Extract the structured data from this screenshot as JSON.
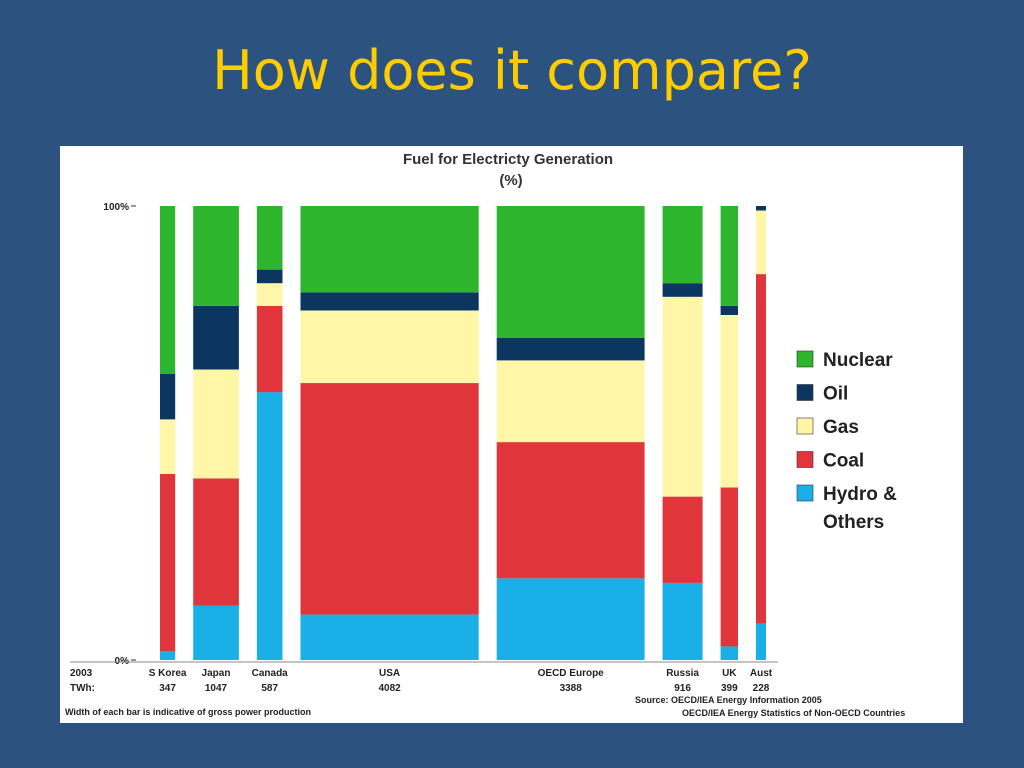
{
  "slide": {
    "title": "How does it compare?"
  },
  "colors": {
    "background": "#2c5380",
    "title": "#ffcc00",
    "nuclear": "#2db52d",
    "oil": "#0b3660",
    "gas": "#fff6a8",
    "coal": "#e0353a",
    "hydro": "#1aafe6"
  },
  "chart_data": {
    "type": "bar",
    "subtype": "variable-width stacked 100% (marimekko)",
    "title": "Fuel for Electricty Generation",
    "subtitle": "(%)",
    "y_ticks": [
      "100%",
      "0%"
    ],
    "ylim": [
      0,
      100
    ],
    "row_labels": {
      "year": "2003",
      "unit": "TWh:"
    },
    "categories": [
      "S Korea",
      "Japan",
      "Canada",
      "USA",
      "OECD Europe",
      "Russia",
      "UK",
      "Aust"
    ],
    "twh": [
      "347",
      "1047",
      "587",
      "4082",
      "3388",
      "916",
      "399",
      "228"
    ],
    "series": [
      {
        "name": "Hydro & Others",
        "key": "hydro",
        "values": [
          2,
          12,
          59,
          10,
          18,
          17,
          3,
          8
        ]
      },
      {
        "name": "Coal",
        "key": "coal",
        "values": [
          39,
          28,
          19,
          51,
          30,
          19,
          35,
          77
        ]
      },
      {
        "name": "Gas",
        "key": "gas",
        "values": [
          12,
          24,
          5,
          16,
          18,
          44,
          38,
          14
        ]
      },
      {
        "name": "Oil",
        "key": "oil",
        "values": [
          10,
          14,
          3,
          4,
          5,
          3,
          2,
          1
        ]
      },
      {
        "name": "Nuclear",
        "key": "nuclear",
        "values": [
          37,
          22,
          14,
          19,
          29,
          17,
          22,
          0
        ]
      }
    ],
    "legend": {
      "position": "right",
      "items": [
        {
          "label": "Nuclear",
          "key": "nuclear"
        },
        {
          "label": "Oil",
          "key": "oil"
        },
        {
          "label": "Gas",
          "key": "gas"
        },
        {
          "label": "Coal",
          "key": "coal"
        },
        {
          "label": "Hydro &",
          "label2": "Others",
          "key": "hydro"
        }
      ]
    },
    "footnote": "Width of each bar is indicative of gross power production",
    "source": [
      "Source: OECD/IEA Energy Information 2005",
      "OECD/IEA Energy Statistics of Non-OECD Countries"
    ]
  }
}
